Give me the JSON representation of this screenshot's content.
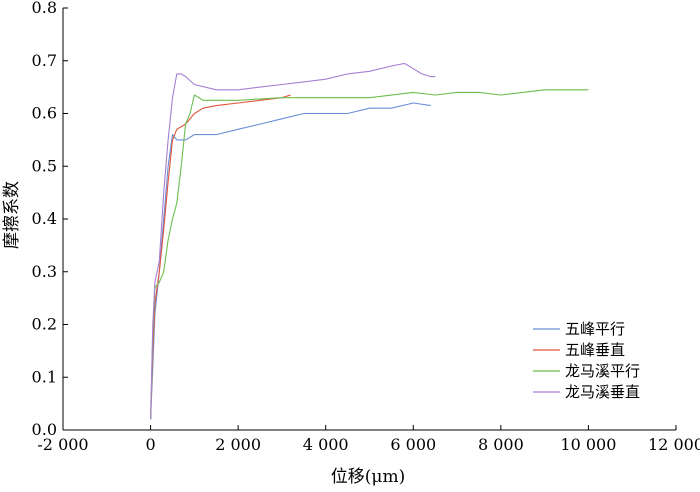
{
  "chart_data": {
    "type": "line",
    "xlabel": "位移(μm)",
    "ylabel": "摩擦系数",
    "xlim": [
      -2000,
      12000
    ],
    "ylim": [
      0.0,
      0.8
    ],
    "x_ticks": [
      -2000,
      0,
      2000,
      4000,
      6000,
      8000,
      10000,
      12000
    ],
    "x_tick_labels": [
      "-2 000",
      "0",
      "2 000",
      "4 000",
      "6 000",
      "8 000",
      "10 000",
      "12 000"
    ],
    "y_ticks": [
      0.0,
      0.1,
      0.2,
      0.3,
      0.4,
      0.5,
      0.6,
      0.7,
      0.8
    ],
    "y_tick_labels": [
      "0.0",
      "0.1",
      "0.2",
      "0.3",
      "0.4",
      "0.5",
      "0.6",
      "0.7",
      "0.8"
    ],
    "grid": false,
    "legend_position": "bottom-right",
    "series": [
      {
        "name": "五峰平行",
        "color": "#6b8fd8",
        "x": [
          0,
          50,
          100,
          200,
          300,
          400,
          500,
          600,
          800,
          1000,
          1500,
          2000,
          2500,
          3000,
          3500,
          4000,
          4500,
          5000,
          5500,
          6000,
          6400
        ],
        "y": [
          0.02,
          0.12,
          0.22,
          0.3,
          0.4,
          0.5,
          0.56,
          0.55,
          0.55,
          0.56,
          0.56,
          0.57,
          0.58,
          0.59,
          0.6,
          0.6,
          0.6,
          0.61,
          0.61,
          0.62,
          0.615
        ]
      },
      {
        "name": "五峰垂直",
        "color": "#e0533c",
        "x": [
          0,
          50,
          100,
          200,
          300,
          400,
          500,
          600,
          800,
          1000,
          1200,
          1500,
          2000,
          2500,
          3000,
          3200
        ],
        "y": [
          0.02,
          0.15,
          0.24,
          0.3,
          0.38,
          0.47,
          0.55,
          0.57,
          0.58,
          0.6,
          0.61,
          0.615,
          0.62,
          0.625,
          0.63,
          0.635
        ]
      },
      {
        "name": "龙马溪平行",
        "color": "#6cbf4e",
        "x": [
          0,
          50,
          100,
          200,
          300,
          400,
          500,
          600,
          700,
          800,
          900,
          1000,
          1200,
          1500,
          2000,
          3000,
          4000,
          5000,
          6000,
          6500,
          7000,
          7500,
          8000,
          8500,
          9000,
          9500,
          10000
        ],
        "y": [
          0.02,
          0.18,
          0.27,
          0.28,
          0.3,
          0.36,
          0.4,
          0.43,
          0.5,
          0.58,
          0.6,
          0.635,
          0.625,
          0.625,
          0.625,
          0.63,
          0.63,
          0.63,
          0.64,
          0.635,
          0.64,
          0.64,
          0.635,
          0.64,
          0.645,
          0.645,
          0.645
        ]
      },
      {
        "name": "龙马溪垂直",
        "color": "#a77fd3",
        "x": [
          0,
          50,
          100,
          200,
          300,
          400,
          500,
          600,
          700,
          800,
          1000,
          1500,
          2000,
          2500,
          3000,
          3500,
          4000,
          4500,
          5000,
          5500,
          5800,
          6000,
          6200,
          6400,
          6500
        ],
        "y": [
          0.02,
          0.2,
          0.28,
          0.32,
          0.45,
          0.55,
          0.63,
          0.675,
          0.675,
          0.67,
          0.655,
          0.645,
          0.645,
          0.65,
          0.655,
          0.66,
          0.665,
          0.675,
          0.68,
          0.69,
          0.695,
          0.685,
          0.675,
          0.67,
          0.67
        ]
      }
    ]
  }
}
